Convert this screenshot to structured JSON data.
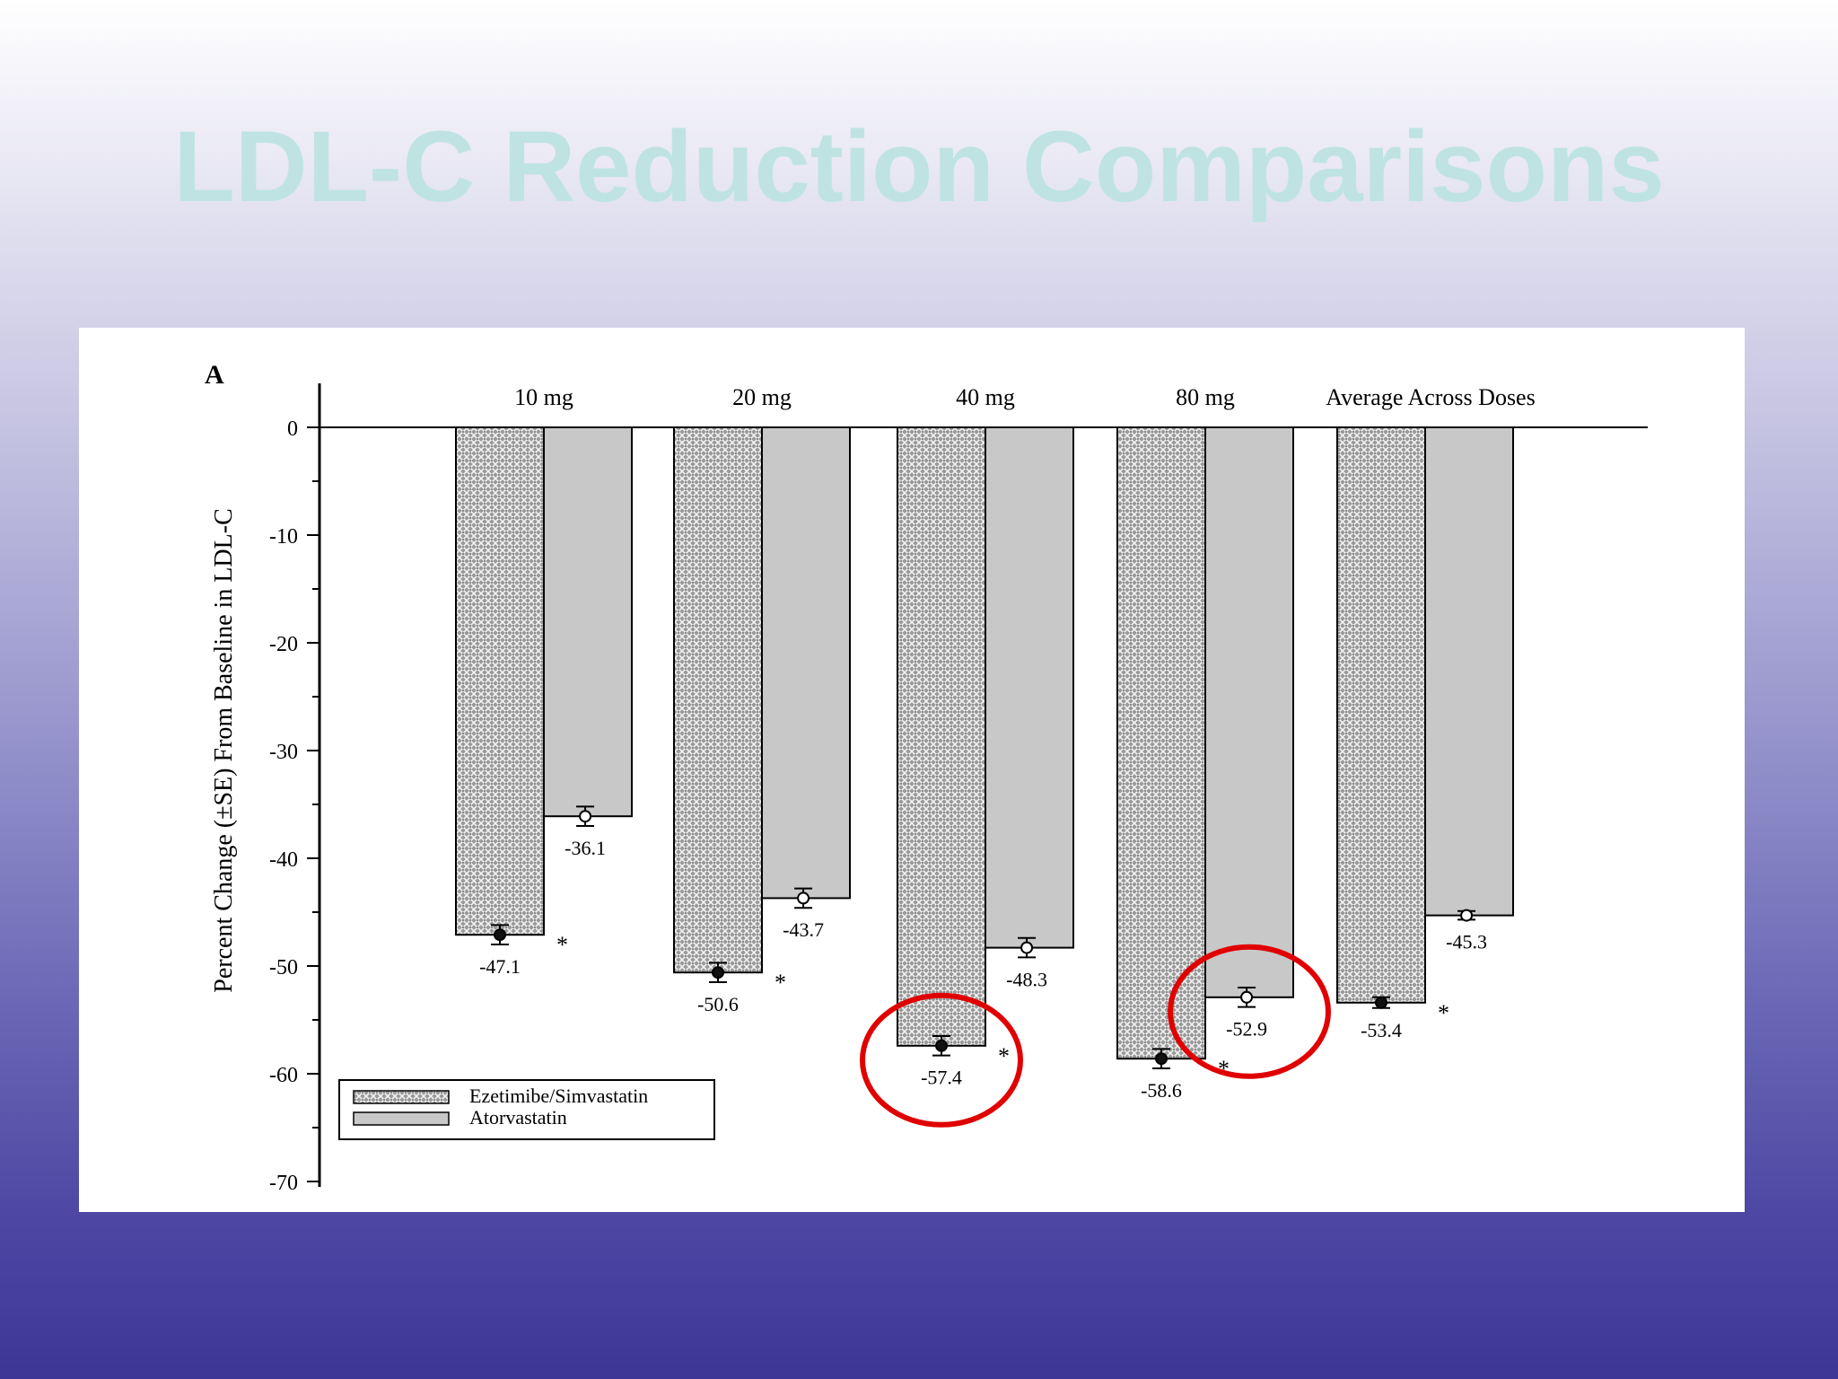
{
  "slide": {
    "title": "LDL-C Reduction Comparisons"
  },
  "chart_data": {
    "type": "bar",
    "panel_label": "A",
    "ylabel": "Percent Change (±SE) From Baseline in LDL-C",
    "ylim": [
      -70,
      0
    ],
    "yticks": [
      0,
      -10,
      -20,
      -30,
      -40,
      -50,
      -60,
      -70
    ],
    "categories": [
      "10 mg",
      "20 mg",
      "40 mg",
      "80 mg",
      "Average Across Doses"
    ],
    "series": [
      {
        "name": "Ezetimibe/Simvastatin",
        "values": [
          -47.1,
          -50.6,
          -57.4,
          -58.6,
          -53.4
        ],
        "se": [
          0.9,
          0.9,
          0.9,
          0.9,
          0.5
        ]
      },
      {
        "name": "Atorvastatin",
        "values": [
          -36.1,
          -43.7,
          -48.3,
          -52.9,
          -45.3
        ],
        "se": [
          0.9,
          0.9,
          0.9,
          0.9,
          0.4
        ]
      }
    ],
    "value_labels": [
      [
        "-47.1",
        "-50.6",
        "-57.4",
        "-58.6",
        "-53.4"
      ],
      [
        "-36.1",
        "-43.7",
        "-48.3",
        "-52.9",
        "-45.3"
      ]
    ],
    "significance_marker": "*",
    "legend_position": "bottom-left",
    "highlighted": [
      {
        "series": 0,
        "category": 2,
        "color": "#e00000"
      },
      {
        "series": 1,
        "category": 3,
        "color": "#e00000"
      }
    ],
    "colors": {
      "atorvastatin_fill": "#c8c8c8",
      "axis": "#000000",
      "highlight": "#e00000"
    }
  }
}
